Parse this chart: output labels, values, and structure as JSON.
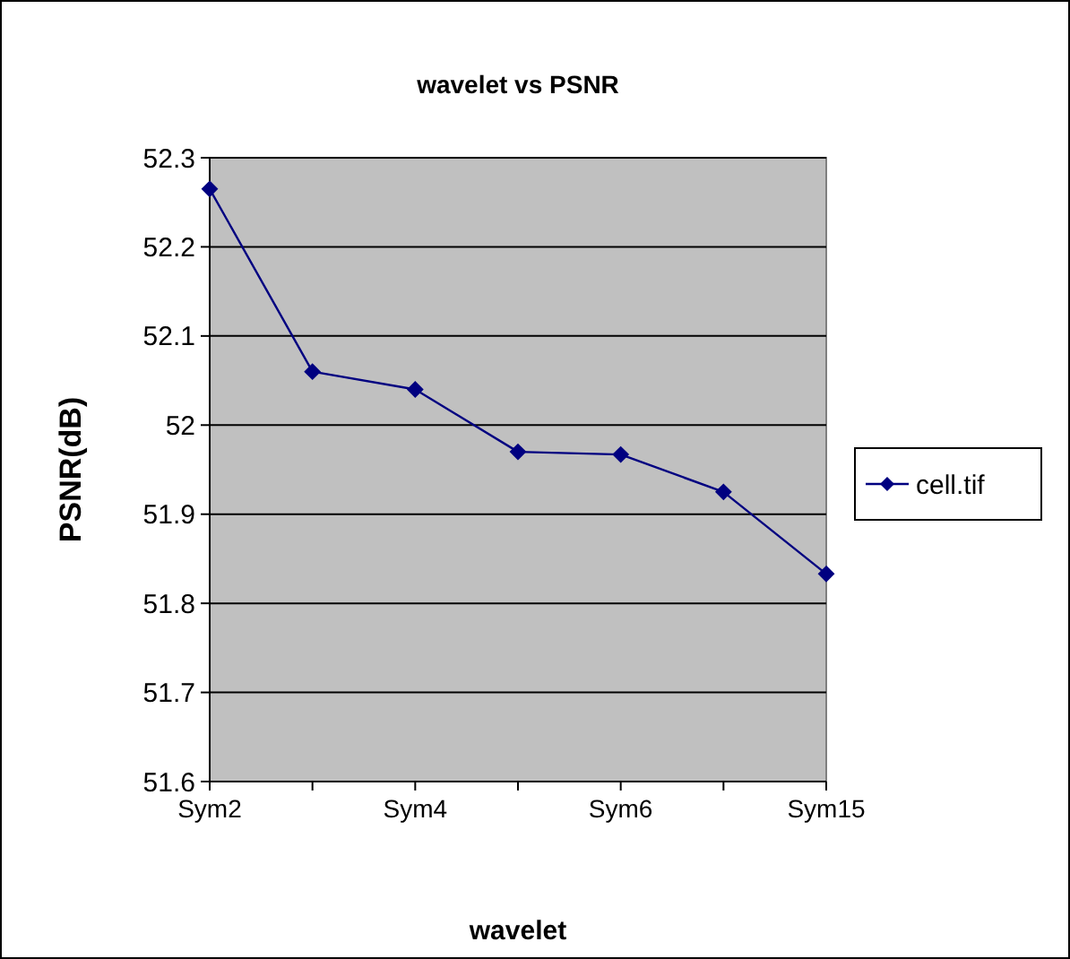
{
  "chart_data": {
    "type": "line",
    "title": "wavelet vs PSNR",
    "xlabel": "wavelet",
    "ylabel": "PSNR(dB)",
    "categories": [
      "Sym2",
      null,
      "Sym4",
      null,
      "Sym6",
      null,
      "Sym15"
    ],
    "series": [
      {
        "name": "cell.tif",
        "color": "#000080",
        "values": [
          52.265,
          52.06,
          52.04,
          51.97,
          51.967,
          51.925,
          51.833
        ]
      }
    ],
    "ylim": [
      51.6,
      52.3
    ],
    "yticks": [
      51.6,
      51.7,
      51.8,
      51.9,
      52,
      52.1,
      52.2,
      52.3
    ],
    "grid": "y",
    "legend": "right",
    "marker": "diamond",
    "line_style": "solid"
  }
}
